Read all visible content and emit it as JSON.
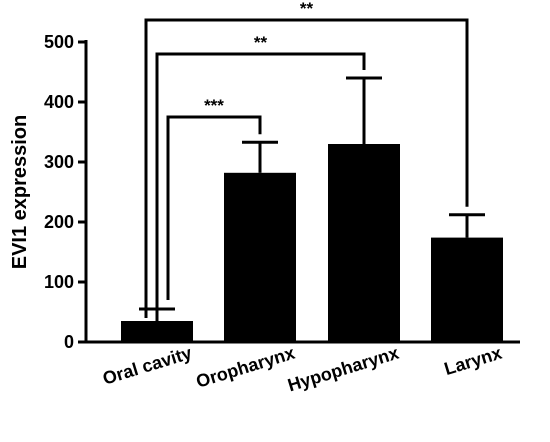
{
  "chart_data": {
    "type": "bar",
    "categories": [
      "Oral cavity",
      "Oropharynx",
      "Hypopharynx",
      "Larynx"
    ],
    "values": [
      35,
      282,
      330,
      174
    ],
    "error_upper": [
      55,
      333,
      440,
      212
    ],
    "ylabel": "EVI1 expression",
    "xlabel": "",
    "ylim": [
      0,
      500
    ],
    "yticks": [
      0,
      100,
      200,
      300,
      400,
      500
    ],
    "bar_color": "#000000",
    "grid": false,
    "comparisons": [
      {
        "from": "Oral cavity",
        "to": "Oropharynx",
        "label": "***"
      },
      {
        "from": "Oral cavity",
        "to": "Hypopharynx",
        "label": "**"
      },
      {
        "from": "Oral cavity",
        "to": "Larynx",
        "label": "**"
      }
    ]
  }
}
